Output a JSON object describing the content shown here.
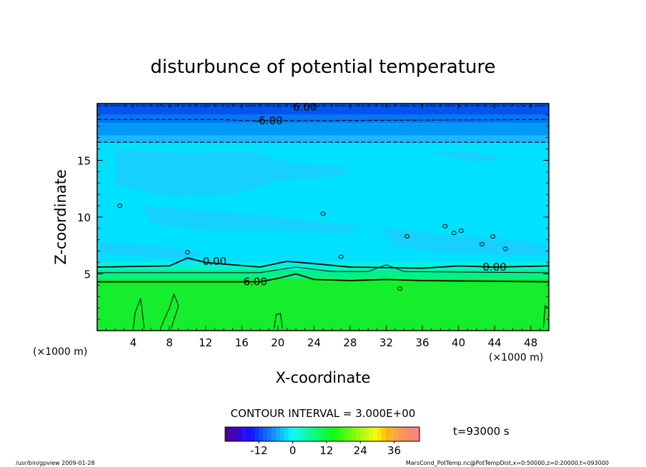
{
  "chart_data": {
    "type": "heatmap",
    "title": "disturbunce of potential temperature",
    "xlabel": "X-coordinate",
    "ylabel": "Z-coordinate",
    "x_unit_left": "(×1000 m)",
    "x_unit_right": "(×1000 m)",
    "xlim": [
      0,
      50
    ],
    "ylim": [
      0,
      20
    ],
    "xticks": [
      "4",
      "8",
      "12",
      "16",
      "20",
      "24",
      "28",
      "32",
      "36",
      "40",
      "44",
      "48"
    ],
    "yticks": [
      "5",
      "10",
      "15"
    ],
    "contour_interval_text": "CONTOUR INTERVAL = 3.000E+00",
    "time_text": "t=93000 s",
    "contour_labels": [
      {
        "text": "6.00",
        "x": 23,
        "z": 19.7
      },
      {
        "text": "-6.00",
        "x": 19,
        "z": 18.5
      },
      {
        "text": "0.00",
        "x": 13,
        "z": 6.1
      },
      {
        "text": "0.00",
        "x": 44,
        "z": 5.6
      },
      {
        "text": "6.00",
        "x": 17.5,
        "z": 4.3
      }
    ],
    "bands": [
      {
        "z": [
          19.0,
          20.0
        ],
        "color": "#0055ee"
      },
      {
        "z": [
          18.3,
          19.0
        ],
        "color": "#0077f5"
      },
      {
        "z": [
          17.2,
          18.3
        ],
        "color": "#0099f8"
      },
      {
        "z": [
          16.5,
          17.2
        ],
        "color": "#1eb5ff"
      },
      {
        "z": [
          6.0,
          16.5
        ],
        "color": "#00e0ff"
      },
      {
        "z": [
          5.4,
          6.0
        ],
        "color": "#00f2d8"
      },
      {
        "z": [
          4.6,
          5.4
        ],
        "color": "#00f08e"
      },
      {
        "z": [
          0.0,
          4.6
        ],
        "color": "#14ee2c"
      }
    ],
    "colorbar": {
      "ticks": [
        "-12",
        "0",
        "12",
        "24",
        "36"
      ],
      "tick_values": [
        -12,
        0,
        12,
        24,
        36
      ],
      "range": [
        -24,
        45
      ]
    }
  },
  "footer": {
    "left": "/usr/bin/gpview  2009-01-28",
    "right": "MarsCond_PotTemp.nc@PotTempDist,x=0:50000,z=0:20000,t=093000"
  }
}
